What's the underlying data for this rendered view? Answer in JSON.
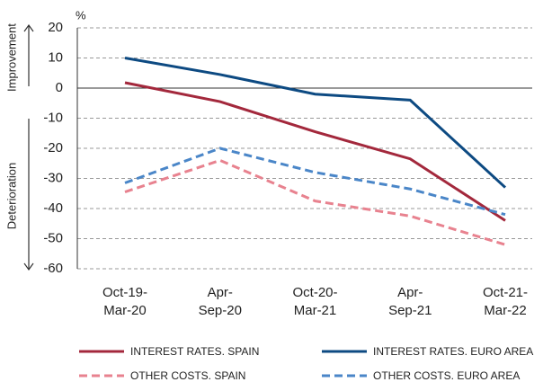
{
  "chart_data": {
    "type": "line",
    "unit_label": "%",
    "annotations": [
      "Improvement",
      "Deterioration"
    ],
    "categories": [
      [
        "Oct-19-",
        "Mar-20"
      ],
      [
        "Apr-",
        "Sep-20"
      ],
      [
        "Oct-20-",
        "Mar-21"
      ],
      [
        "Apr-",
        "Sep-21"
      ],
      [
        "Oct-21-",
        "Mar-22"
      ]
    ],
    "series": [
      {
        "name": "INTEREST RATES. SPAIN",
        "color": "#a3283c",
        "dashed": false,
        "values": [
          1.8,
          -4.5,
          -14.5,
          -23.5,
          -44
        ]
      },
      {
        "name": "INTEREST RATES. EURO AREA",
        "color": "#0d4a82",
        "dashed": false,
        "values": [
          10,
          4.5,
          -2,
          -4,
          -33
        ]
      },
      {
        "name": "OTHER COSTS. SPAIN",
        "color": "#e8828f",
        "dashed": true,
        "values": [
          -34.5,
          -24,
          -37.5,
          -42.5,
          -52
        ]
      },
      {
        "name": "OTHER COSTS. EURO AREA",
        "color": "#4a86c8",
        "dashed": true,
        "values": [
          -31.5,
          -20,
          -28,
          -33.5,
          -42
        ]
      }
    ],
    "ylim": [
      -60,
      20
    ],
    "yticks": [
      -60,
      -50,
      -40,
      -30,
      -20,
      -10,
      0,
      10,
      20
    ],
    "grid": true
  }
}
